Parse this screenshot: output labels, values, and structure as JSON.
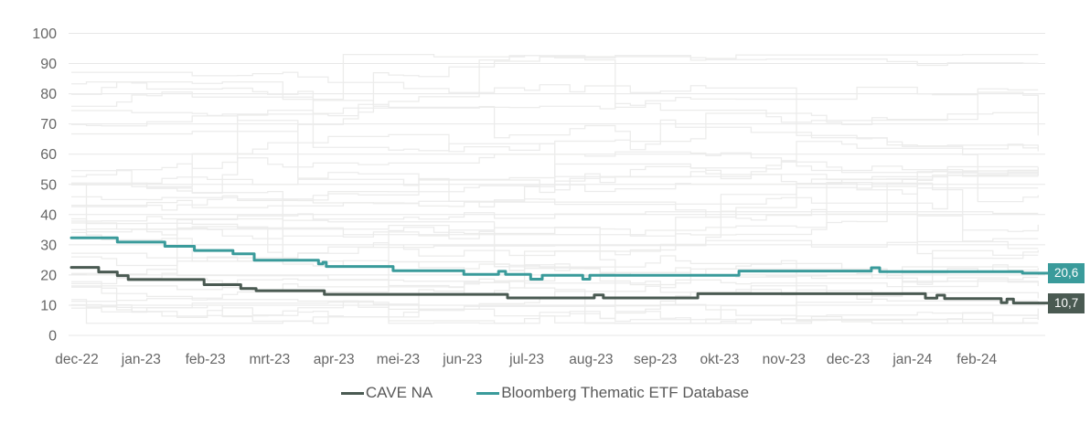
{
  "chart_data": {
    "type": "line",
    "title": "",
    "xlabel": "",
    "ylabel": "",
    "y_ticks": [
      0,
      10,
      20,
      30,
      40,
      50,
      60,
      70,
      80,
      90,
      100
    ],
    "ylim": [
      0,
      100
    ],
    "x_tick_labels": [
      "dec-22",
      "jan-23",
      "feb-23",
      "mrt-23",
      "apr-23",
      "mei-23",
      "jun-23",
      "jul-23",
      "aug-23",
      "sep-23",
      "okt-23",
      "nov-23",
      "dec-23",
      "jan-24",
      "feb-24"
    ],
    "x_range_months": [
      -0.085,
      14.95
    ],
    "grid": "horizontal",
    "legend_position": "bottom",
    "line_style": "step-after",
    "series": [
      {
        "name": "CAVE NA",
        "color": "#4a5a52",
        "end_label": "10,7",
        "end_value": 10.7,
        "points": [
          [
            -0.085,
            22.5
          ],
          [
            0.34,
            21.0
          ],
          [
            0.63,
            19.8
          ],
          [
            0.8,
            18.5
          ],
          [
            1.98,
            16.8
          ],
          [
            2.55,
            15.5
          ],
          [
            2.79,
            14.8
          ],
          [
            3.85,
            13.6
          ],
          [
            6.7,
            12.4
          ],
          [
            8.05,
            13.4
          ],
          [
            8.19,
            12.4
          ],
          [
            9.66,
            13.8
          ],
          [
            13.2,
            12.3
          ],
          [
            13.38,
            13.3
          ],
          [
            13.5,
            12.2
          ],
          [
            14.38,
            10.8
          ],
          [
            14.47,
            12.0
          ],
          [
            14.57,
            10.7
          ],
          [
            14.95,
            10.7
          ]
        ]
      },
      {
        "name": "Bloomberg Thematic ETF Database",
        "color": "#3a9b9b",
        "end_label": "20,6",
        "end_value": 20.6,
        "points": [
          [
            -0.085,
            32.3
          ],
          [
            0.63,
            30.9
          ],
          [
            1.37,
            29.5
          ],
          [
            1.83,
            28.1
          ],
          [
            2.43,
            27.0
          ],
          [
            2.76,
            24.9
          ],
          [
            3.76,
            23.7
          ],
          [
            3.83,
            24.2
          ],
          [
            3.88,
            22.8
          ],
          [
            4.92,
            21.4
          ],
          [
            6.02,
            20.2
          ],
          [
            6.56,
            21.2
          ],
          [
            6.67,
            20.2
          ],
          [
            7.06,
            18.6
          ],
          [
            7.24,
            19.9
          ],
          [
            7.87,
            18.6
          ],
          [
            7.98,
            19.9
          ],
          [
            10.3,
            21.3
          ],
          [
            12.36,
            22.4
          ],
          [
            12.49,
            21.1
          ],
          [
            14.71,
            20.6
          ],
          [
            14.95,
            20.6
          ]
        ]
      }
    ],
    "background_series": {
      "count": 34,
      "seed": 11,
      "color": "#ececeb",
      "min": 4,
      "max": 93
    },
    "colors": {
      "axis_text": "#666666",
      "grid_line": "#e7e7e7",
      "legend_text": "#595959",
      "background": "#ffffff"
    }
  },
  "legend": {
    "items": [
      {
        "label": "CAVE NA",
        "color": "#4a5a52"
      },
      {
        "label": "Bloomberg Thematic ETF Database",
        "color": "#3a9b9b"
      }
    ]
  },
  "end_labels": {
    "cave": "10,7",
    "bloomberg": "20,6"
  }
}
